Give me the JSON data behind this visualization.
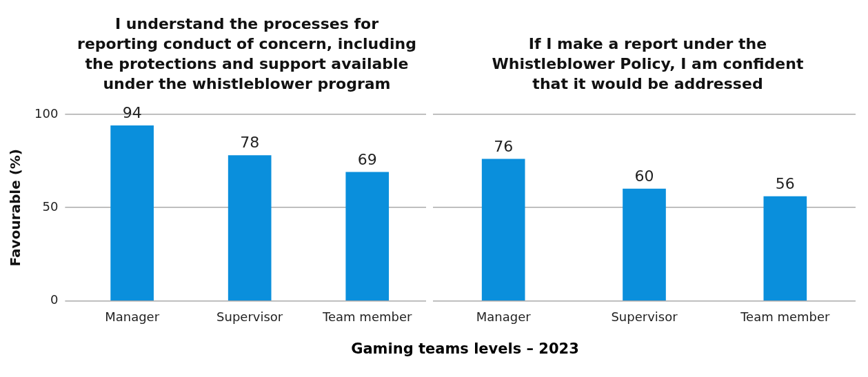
{
  "chart_data": [
    {
      "type": "bar",
      "title": "I understand the processes for reporting conduct of concern, including the protections and support available under the whistleblower program",
      "ylabel": "Favourable (%)",
      "xlabel": "Gaming teams levels – 2023",
      "categories": [
        "Manager",
        "Supervisor",
        "Team member"
      ],
      "values": [
        94,
        78,
        69
      ],
      "color": "#0a8fdc",
      "ylim": [
        0,
        100
      ],
      "yticks": [
        0,
        50,
        100
      ],
      "grid": "y",
      "data_labels": true
    },
    {
      "type": "bar",
      "title": "If I make a report under the Whistleblower Policy, I am confident that it would be addressed",
      "categories": [
        "Manager",
        "Supervisor",
        "Team member"
      ],
      "values": [
        76,
        60,
        56
      ],
      "color": "#0a8fdc",
      "ylim": [
        0,
        100
      ],
      "yticks": [
        0,
        50,
        100
      ],
      "grid": "y",
      "data_labels": true,
      "tick_labels": "x"
    }
  ]
}
